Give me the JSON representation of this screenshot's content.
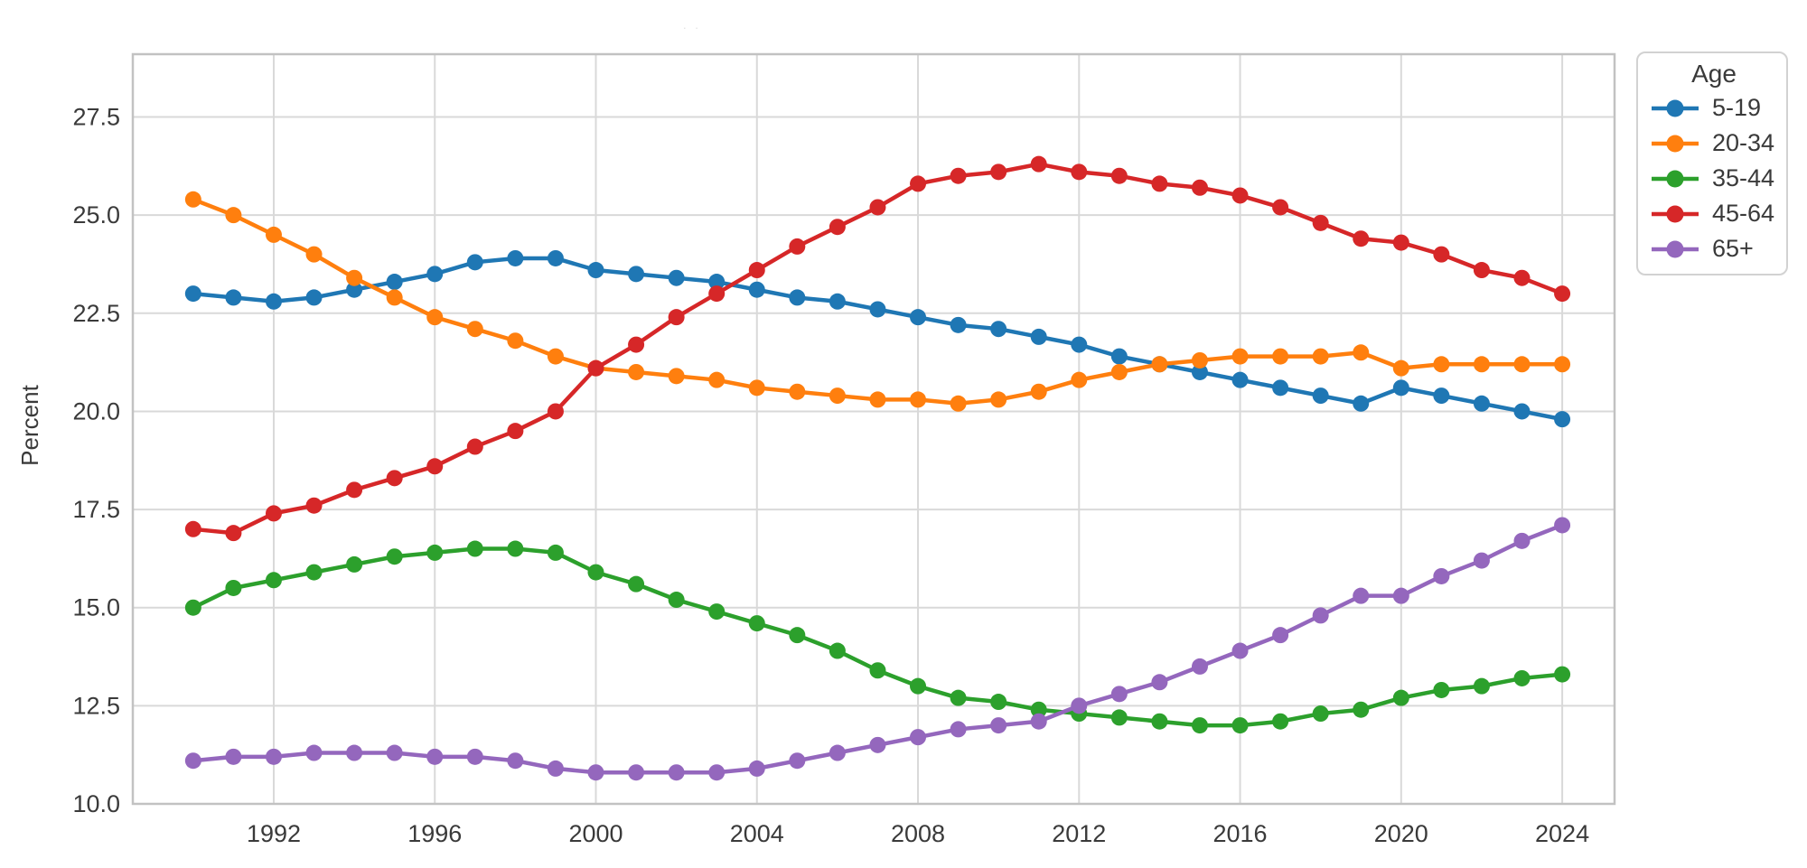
{
  "figure": {
    "faint_title": ". .",
    "background": "#ffffff",
    "grid_color": "#d9d9d9",
    "border_color": "#c2c2c2",
    "text_color": "#3a3a3a"
  },
  "chart_data": {
    "type": "line",
    "title": "",
    "xlabel": "",
    "ylabel": "Percent",
    "legend_title": "Age",
    "legend_position": "upper right outside plot",
    "grid": true,
    "marker": "circle",
    "x": [
      1990,
      1991,
      1992,
      1993,
      1994,
      1995,
      1996,
      1997,
      1998,
      1999,
      2000,
      2001,
      2002,
      2003,
      2004,
      2005,
      2006,
      2007,
      2008,
      2009,
      2010,
      2011,
      2012,
      2013,
      2014,
      2015,
      2016,
      2017,
      2018,
      2019,
      2020,
      2021,
      2022,
      2023,
      2024
    ],
    "xticks": [
      1992,
      1996,
      2000,
      2004,
      2008,
      2012,
      2016,
      2020,
      2024
    ],
    "yticks": [
      10.0,
      12.5,
      15.0,
      17.5,
      20.0,
      22.5,
      25.0,
      27.5
    ],
    "xlim": [
      1988.5,
      2025.3
    ],
    "ylim": [
      10.0,
      29.1
    ],
    "series": [
      {
        "name": "5-19",
        "color": "#1f77b4",
        "values": [
          23.0,
          22.9,
          22.8,
          22.9,
          23.1,
          23.3,
          23.5,
          23.8,
          23.9,
          23.9,
          23.6,
          23.5,
          23.4,
          23.3,
          23.1,
          22.9,
          22.8,
          22.6,
          22.4,
          22.2,
          22.1,
          21.9,
          21.7,
          21.4,
          21.2,
          21.0,
          20.8,
          20.6,
          20.4,
          20.2,
          20.6,
          20.4,
          20.2,
          20.0,
          19.8
        ]
      },
      {
        "name": "20-34",
        "color": "#ff7f0e",
        "values": [
          25.4,
          25.0,
          24.5,
          24.0,
          23.4,
          22.9,
          22.4,
          22.1,
          21.8,
          21.4,
          21.1,
          21.0,
          20.9,
          20.8,
          20.6,
          20.5,
          20.4,
          20.3,
          20.3,
          20.2,
          20.3,
          20.5,
          20.8,
          21.0,
          21.2,
          21.3,
          21.4,
          21.4,
          21.4,
          21.5,
          21.1,
          21.2,
          21.2,
          21.2,
          21.2
        ]
      },
      {
        "name": "35-44",
        "color": "#2ca02c",
        "values": [
          15.0,
          15.5,
          15.7,
          15.9,
          16.1,
          16.3,
          16.4,
          16.5,
          16.5,
          16.4,
          15.9,
          15.6,
          15.2,
          14.9,
          14.6,
          14.3,
          13.9,
          13.4,
          13.0,
          12.7,
          12.6,
          12.4,
          12.3,
          12.2,
          12.1,
          12.0,
          12.0,
          12.1,
          12.3,
          12.4,
          12.7,
          12.9,
          13.0,
          13.2,
          13.3
        ]
      },
      {
        "name": "45-64",
        "color": "#d62728",
        "values": [
          17.0,
          16.9,
          17.4,
          17.6,
          18.0,
          18.3,
          18.6,
          19.1,
          19.5,
          20.0,
          21.1,
          21.7,
          22.4,
          23.0,
          23.6,
          24.2,
          24.7,
          25.2,
          25.8,
          26.0,
          26.1,
          26.3,
          26.1,
          26.0,
          25.8,
          25.7,
          25.5,
          25.2,
          24.8,
          24.4,
          24.3,
          24.0,
          23.6,
          23.4,
          23.0
        ]
      },
      {
        "name": "65+",
        "color": "#9467bd",
        "values": [
          11.1,
          11.2,
          11.2,
          11.3,
          11.3,
          11.3,
          11.2,
          11.2,
          11.1,
          10.9,
          10.8,
          10.8,
          10.8,
          10.8,
          10.9,
          11.1,
          11.3,
          11.5,
          11.7,
          11.9,
          12.0,
          12.1,
          12.5,
          12.8,
          13.1,
          13.5,
          13.9,
          14.3,
          14.8,
          15.3,
          15.3,
          15.8,
          16.2,
          16.7,
          17.1
        ]
      }
    ]
  }
}
